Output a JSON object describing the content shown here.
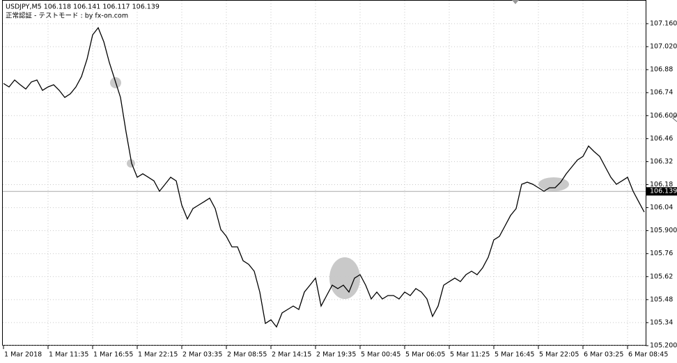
{
  "chart_data": {
    "type": "line",
    "title": "USDJPY,M5  106.118 106.141 106.117 106.139",
    "subtitle": "正常認証 - テストモード : by fx-on.com",
    "color": "#000000",
    "current_price": 106.139,
    "grid": true,
    "categories": [
      "1 Mar 2018",
      null,
      null,
      null,
      null,
      null,
      null,
      null,
      "1 Mar 11:35",
      null,
      null,
      null,
      null,
      null,
      null,
      null,
      "1 Mar 16:55",
      null,
      null,
      null,
      null,
      null,
      null,
      null,
      "1 Mar 22:15",
      null,
      null,
      null,
      null,
      null,
      null,
      null,
      "2 Mar 03:35",
      null,
      null,
      null,
      null,
      null,
      null,
      null,
      "2 Mar 08:55",
      null,
      null,
      null,
      null,
      null,
      null,
      null,
      "2 Mar 14:15",
      null,
      null,
      null,
      null,
      null,
      null,
      null,
      "2 Mar 19:35",
      null,
      null,
      null,
      null,
      null,
      null,
      null,
      "5 Mar 00:45",
      null,
      null,
      null,
      null,
      null,
      null,
      null,
      "5 Mar 06:05",
      null,
      null,
      null,
      null,
      null,
      null,
      null,
      "5 Mar 11:25",
      null,
      null,
      null,
      null,
      null,
      null,
      null,
      "5 Mar 16:45",
      null,
      null,
      null,
      null,
      null,
      null,
      null,
      "5 Mar 22:05",
      null,
      null,
      null,
      null,
      null,
      null,
      null,
      "6 Mar 03:25",
      null,
      null,
      null,
      null,
      null,
      null,
      null,
      "6 Mar 08:45",
      null,
      null,
      null
    ],
    "values": [
      106.796,
      106.775,
      106.817,
      106.788,
      106.762,
      106.805,
      106.817,
      106.754,
      106.775,
      106.788,
      106.754,
      106.711,
      106.733,
      106.775,
      106.838,
      106.944,
      107.092,
      107.135,
      107.05,
      106.923,
      106.817,
      106.711,
      106.5,
      106.309,
      106.225,
      106.246,
      106.225,
      106.203,
      106.14,
      106.182,
      106.225,
      106.203,
      106.055,
      105.971,
      106.034,
      106.055,
      106.076,
      106.098,
      106.034,
      105.907,
      105.865,
      105.801,
      105.801,
      105.717,
      105.695,
      105.653,
      105.526,
      105.335,
      105.357,
      105.314,
      105.399,
      105.42,
      105.441,
      105.42,
      105.526,
      105.568,
      105.611,
      105.441,
      105.505,
      105.568,
      105.547,
      105.568,
      105.526,
      105.611,
      105.632,
      105.568,
      105.484,
      105.526,
      105.484,
      105.505,
      105.505,
      105.484,
      105.526,
      105.505,
      105.547,
      105.526,
      105.484,
      105.378,
      105.441,
      105.568,
      105.59,
      105.611,
      105.59,
      105.632,
      105.653,
      105.632,
      105.674,
      105.738,
      105.844,
      105.865,
      105.928,
      105.992,
      106.034,
      106.182,
      106.195,
      106.182,
      106.161,
      106.14,
      106.161,
      106.161,
      106.195,
      106.246,
      106.288,
      106.33,
      106.352,
      106.415,
      106.381,
      106.352,
      106.288,
      106.225,
      106.182,
      106.203,
      106.225,
      106.14,
      106.076,
      106.013
    ],
    "ylim": [
      105.2,
      107.304
    ],
    "yticks": [
      {
        "value": 107.16,
        "label": "107.160"
      },
      {
        "value": 107.02,
        "label": "107.020"
      },
      106.88,
      106.74,
      {
        "value": 106.6,
        "label": "106.600"
      },
      106.46,
      106.32,
      106.18,
      106.04,
      {
        "value": 105.9,
        "label": "105.900"
      },
      105.76,
      105.62,
      105.48,
      105.34,
      {
        "value": 105.2,
        "label": "105.200"
      }
    ]
  }
}
